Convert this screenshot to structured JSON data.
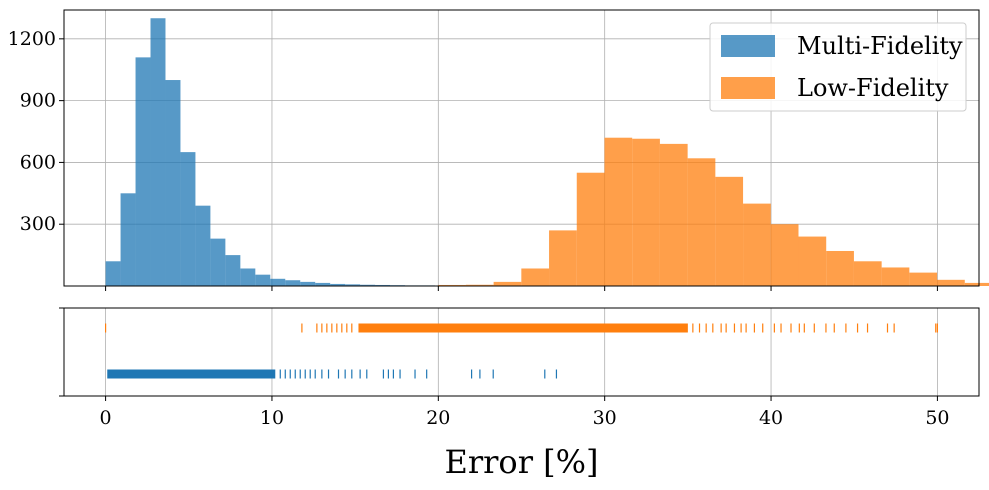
{
  "chart_data": {
    "type": "bar",
    "xlabel": "Error [%]",
    "x_ticks": [
      0,
      10,
      20,
      30,
      40,
      50
    ],
    "xlim": [
      -2.5,
      52.5
    ],
    "grid": true,
    "legend_placement": "top-right",
    "histogram": {
      "ylim": [
        0,
        1340
      ],
      "y_ticks": [
        300,
        600,
        900,
        1200
      ],
      "series": [
        {
          "name": "Multi-Fidelity",
          "color": "#1f77b4",
          "bin_width": 0.9,
          "bin_start": 0,
          "counts": [
            120,
            450,
            1110,
            1300,
            1000,
            650,
            390,
            230,
            150,
            85,
            55,
            35,
            28,
            20,
            15,
            10,
            8,
            6,
            5,
            4,
            3,
            3,
            2,
            2,
            2,
            1,
            1,
            1,
            1,
            1
          ]
        },
        {
          "name": "Low-Fidelity",
          "color": "#ff7f0e",
          "bin_width": 1.666,
          "bin_start": 0,
          "counts": [
            0,
            0,
            0,
            0,
            0,
            0,
            0,
            0,
            0,
            0,
            0,
            0,
            5,
            6,
            20,
            85,
            270,
            550,
            720,
            715,
            690,
            620,
            530,
            400,
            300,
            240,
            170,
            120,
            90,
            65,
            30,
            15,
            8,
            5,
            3,
            2,
            1,
            1,
            1,
            1
          ]
        }
      ]
    },
    "rug": {
      "series": [
        {
          "name": "Low-Fidelity",
          "color": "#ff7f0e",
          "dense_range": [
            15.2,
            35.0
          ],
          "sparse_points": [
            0,
            11.8,
            12.7,
            13.0,
            13.3,
            13.6,
            13.9,
            14.2,
            14.5,
            14.8,
            35.3,
            35.7,
            36.1,
            36.5,
            37.0,
            37.3,
            37.8,
            38.2,
            38.5,
            39.0,
            39.5,
            40.2,
            40.6,
            41.2,
            41.7,
            42.0,
            42.6,
            43.3,
            43.8,
            44.5,
            45.2,
            45.8,
            47.0,
            47.4,
            49.9,
            50.0
          ]
        },
        {
          "name": "Multi-Fidelity",
          "color": "#1f77b4",
          "dense_range": [
            0.1,
            10.2
          ],
          "sparse_points": [
            10.5,
            10.8,
            11.1,
            11.4,
            11.7,
            12.0,
            12.3,
            12.6,
            13.0,
            13.4,
            14.0,
            14.4,
            14.8,
            15.3,
            15.7,
            16.7,
            17.0,
            17.3,
            17.7,
            18.6,
            19.3,
            22.0,
            22.5,
            23.3,
            26.4,
            27.1
          ]
        }
      ]
    }
  }
}
